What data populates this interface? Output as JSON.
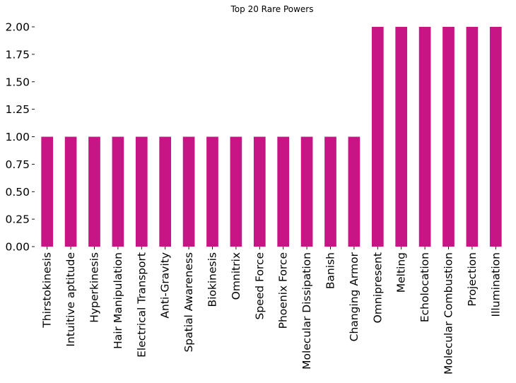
{
  "chart_data": {
    "type": "bar",
    "title": "Top 20 Rare Powers",
    "xlabel": "",
    "ylabel": "",
    "categories": [
      "Thirstokinesis",
      "Intuitive aptitude",
      "Hyperkinesis",
      "Hair Manipulation",
      "Electrical Transport",
      "Anti-Gravity",
      "Spatial Awareness",
      "Biokinesis",
      "Omnitrix",
      "Speed Force",
      "Phoenix Force",
      "Molecular Dissipation",
      "Banish",
      "Changing Armor",
      "Omnipresent",
      "Melting",
      "Echolocation",
      "Molecular Combustion",
      "Projection",
      "Illumination"
    ],
    "values": [
      1,
      1,
      1,
      1,
      1,
      1,
      1,
      1,
      1,
      1,
      1,
      1,
      1,
      1,
      2,
      2,
      2,
      2,
      2,
      2
    ],
    "ylim": [
      0,
      2
    ],
    "yticks": [
      "0.00",
      "0.25",
      "0.50",
      "0.75",
      "1.00",
      "1.25",
      "1.50",
      "1.75",
      "2.00"
    ],
    "bar_color": "#c71585",
    "grid": false,
    "legend": "none"
  }
}
